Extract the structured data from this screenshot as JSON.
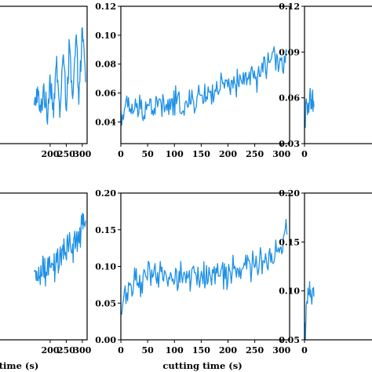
{
  "colors": {
    "series": "#1E90E6",
    "axis": "#000000"
  },
  "chart_data": [
    {
      "type": "line",
      "panel": "top-left",
      "xlabel": "",
      "ylabel": "",
      "xlim": [
        -5,
        315
      ],
      "ylim": [
        0.02,
        0.12
      ],
      "xticks": [
        200,
        250,
        300
      ],
      "xtick_labels": [
        "200",
        "250",
        "300"
      ],
      "yticks": [],
      "ytick_labels": [],
      "series": [
        {
          "x": [
            150,
            160,
            170,
            180,
            190,
            200,
            210,
            220,
            230,
            240,
            250,
            260,
            270,
            280,
            290,
            300,
            310
          ],
          "y": [
            0.045,
            0.058,
            0.04,
            0.062,
            0.038,
            0.07,
            0.045,
            0.078,
            0.042,
            0.085,
            0.05,
            0.09,
            0.048,
            0.095,
            0.055,
            0.1,
            0.07
          ]
        }
      ]
    },
    {
      "type": "line",
      "panel": "top-middle",
      "xlabel": "",
      "ylabel": "",
      "xlim": [
        0,
        315
      ],
      "ylim": [
        0.025,
        0.12
      ],
      "xticks": [
        0,
        50,
        100,
        150,
        200,
        250,
        300
      ],
      "xtick_labels": [
        "0",
        "50",
        "100",
        "150",
        "200",
        "250",
        "300"
      ],
      "yticks": [
        0.04,
        0.06,
        0.08,
        0.1,
        0.12
      ],
      "ytick_labels": [
        "0.04",
        "0.06",
        "0.08",
        "0.10",
        "0.12"
      ],
      "series": [
        {
          "x": [
            0,
            15,
            30,
            45,
            60,
            75,
            90,
            105,
            120,
            135,
            150,
            165,
            180,
            195,
            210,
            225,
            240,
            255,
            270,
            285,
            300,
            310
          ],
          "y": [
            0.045,
            0.05,
            0.047,
            0.052,
            0.05,
            0.053,
            0.049,
            0.055,
            0.05,
            0.054,
            0.058,
            0.06,
            0.062,
            0.065,
            0.063,
            0.068,
            0.072,
            0.07,
            0.08,
            0.085,
            0.078,
            0.09
          ]
        }
      ]
    },
    {
      "type": "line",
      "panel": "top-right",
      "xlabel": "",
      "ylabel": "",
      "xlim": [
        0,
        315
      ],
      "ylim": [
        0.03,
        0.12
      ],
      "xticks": [
        0
      ],
      "xtick_labels": [
        "0"
      ],
      "yticks": [
        0.03,
        0.06,
        0.09,
        0.12
      ],
      "ytick_labels": [
        "0.03",
        "0.06",
        "0.09",
        "0.12"
      ],
      "series": [
        {
          "x": [
            0,
            5,
            10,
            15,
            20,
            25,
            30,
            35
          ],
          "y": [
            0.04,
            0.05,
            0.055,
            0.05,
            0.06,
            0.052,
            0.056,
            0.054
          ]
        }
      ]
    },
    {
      "type": "line",
      "panel": "bottom-left",
      "xlabel": "time (s)",
      "ylabel": "",
      "xlim": [
        -5,
        315
      ],
      "ylim": [
        0.0,
        0.2
      ],
      "xticks": [
        200,
        250,
        300
      ],
      "xtick_labels": [
        "200",
        "250",
        "300"
      ],
      "yticks": [],
      "ytick_labels": [],
      "series": [
        {
          "x": [
            150,
            160,
            170,
            180,
            190,
            200,
            210,
            220,
            230,
            240,
            250,
            260,
            270,
            280,
            290,
            300,
            310
          ],
          "y": [
            0.08,
            0.09,
            0.085,
            0.095,
            0.09,
            0.1,
            0.095,
            0.11,
            0.105,
            0.12,
            0.115,
            0.13,
            0.125,
            0.14,
            0.135,
            0.15,
            0.155
          ]
        }
      ]
    },
    {
      "type": "line",
      "panel": "bottom-middle",
      "xlabel": "cutting time (s)",
      "ylabel": "",
      "xlim": [
        0,
        315
      ],
      "ylim": [
        0.0,
        0.2
      ],
      "xticks": [
        0,
        50,
        100,
        150,
        200,
        250,
        300
      ],
      "xtick_labels": [
        "0",
        "50",
        "100",
        "150",
        "200",
        "250",
        "300"
      ],
      "yticks": [
        0.0,
        0.05,
        0.1,
        0.15,
        0.2
      ],
      "ytick_labels": [
        "0.00",
        "0.05",
        "0.10",
        "0.15",
        "0.20"
      ],
      "series": [
        {
          "x": [
            0,
            3,
            8,
            15,
            25,
            40,
            60,
            80,
            100,
            120,
            140,
            160,
            180,
            200,
            220,
            240,
            260,
            280,
            300,
            310
          ],
          "y": [
            0.025,
            0.05,
            0.065,
            0.075,
            0.08,
            0.082,
            0.085,
            0.085,
            0.087,
            0.085,
            0.088,
            0.086,
            0.088,
            0.09,
            0.095,
            0.1,
            0.105,
            0.115,
            0.125,
            0.16
          ]
        }
      ]
    },
    {
      "type": "line",
      "panel": "bottom-right",
      "xlabel": "",
      "ylabel": "",
      "xlim": [
        0,
        315
      ],
      "ylim": [
        0.05,
        0.2
      ],
      "xticks": [
        0
      ],
      "xtick_labels": [
        "0"
      ],
      "yticks": [
        0.05,
        0.1,
        0.15,
        0.2
      ],
      "ytick_labels": [
        "0.05",
        "0.10",
        "0.15",
        "0.20"
      ],
      "series": [
        {
          "x": [
            0,
            5,
            10,
            15,
            20,
            25,
            30,
            35
          ],
          "y": [
            0.055,
            0.07,
            0.085,
            0.095,
            0.1,
            0.098,
            0.105,
            0.102
          ]
        }
      ]
    }
  ]
}
